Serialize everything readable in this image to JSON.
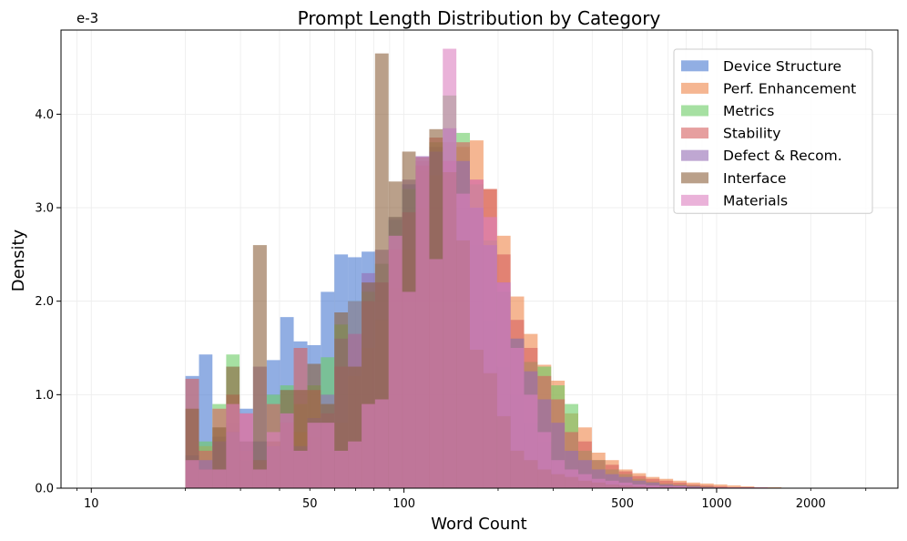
{
  "chart_data": {
    "type": "histogram",
    "title": "Prompt Length Distribution by Category",
    "xlabel": "Word Count",
    "ylabel": "Density",
    "y_multiplier_label": "e-3",
    "x_scale": "log",
    "xlim": [
      8,
      3800
    ],
    "ylim": [
      0,
      4.9
    ],
    "x_ticks": [
      {
        "value": 10,
        "label": "10"
      },
      {
        "value": 50,
        "label": "50"
      },
      {
        "value": 100,
        "label": "100"
      },
      {
        "value": 500,
        "label": "500"
      },
      {
        "value": 1000,
        "label": "1000"
      },
      {
        "value": 2000,
        "label": "2000"
      }
    ],
    "y_ticks": [
      {
        "value": 0,
        "label": "0.0"
      },
      {
        "value": 1,
        "label": "1.0"
      },
      {
        "value": 2,
        "label": "2.0"
      },
      {
        "value": 3,
        "label": "3.0"
      },
      {
        "value": 4,
        "label": "4.0"
      }
    ],
    "grid": true,
    "legend_position": "top-right",
    "bin_edges": [
      20,
      22.1,
      24.4,
      27,
      29.8,
      32.9,
      36.4,
      40.2,
      44.4,
      49.1,
      54.2,
      59.9,
      66.2,
      73.2,
      80.8,
      89.3,
      98.7,
      109,
      120.5,
      133.1,
      147.1,
      162.5,
      179.6,
      198.4,
      219.2,
      242.2,
      267.6,
      295.7,
      326.7,
      361,
      398.9,
      440.7,
      486.9,
      538,
      594.4,
      656.8,
      725.7,
      801.8,
      885.9,
      978.9,
      1081.6,
      1195,
      1320.4,
      1458.9,
      1612,
      1781.1,
      1967.9,
      2174.3,
      2402.4,
      2654.4,
      2932.9
    ],
    "series": [
      {
        "name": "Device Structure",
        "color": "#4878d0",
        "values": [
          1.2,
          1.43,
          0.55,
          0.7,
          0.85,
          0.5,
          1.37,
          1.83,
          1.57,
          1.53,
          2.1,
          2.5,
          2.47,
          2.53,
          2.2,
          2.87,
          3.25,
          3.55,
          3.65,
          3.3,
          3.0,
          2.6,
          1.8,
          1.3,
          1.0,
          0.7,
          0.5,
          0.3,
          0.2,
          0.13,
          0.1,
          0.08,
          0.06,
          0.04,
          0.03,
          0.02,
          0.01,
          0,
          0,
          0,
          0,
          0,
          0,
          0,
          0,
          0,
          0,
          0,
          0,
          0
        ]
      },
      {
        "name": "Perf. Enhancement",
        "color": "#ee854a",
        "values": [
          0.3,
          0.45,
          0.2,
          0.9,
          0.4,
          0.2,
          0.5,
          0.4,
          0.6,
          0.55,
          0.4,
          0.7,
          1.2,
          1.5,
          1.8,
          2.15,
          2.55,
          3.0,
          3.35,
          3.7,
          3.65,
          3.72,
          3.2,
          2.7,
          2.05,
          1.65,
          1.32,
          1.15,
          0.8,
          0.65,
          0.38,
          0.3,
          0.2,
          0.16,
          0.12,
          0.1,
          0.08,
          0.06,
          0.05,
          0.04,
          0.03,
          0.02,
          0.01,
          0.01,
          0,
          0,
          0,
          0,
          0,
          0
        ]
      },
      {
        "name": "Metrics",
        "color": "#6acc64",
        "values": [
          0.35,
          0.5,
          0.9,
          1.43,
          0.3,
          0.3,
          1.0,
          1.1,
          0.9,
          1.1,
          1.4,
          1.75,
          2.0,
          2.1,
          2.4,
          2.9,
          3.2,
          3.4,
          3.7,
          4.2,
          3.8,
          3.25,
          2.65,
          2.1,
          1.6,
          1.35,
          1.3,
          1.1,
          0.9,
          0.4,
          0.3,
          0.2,
          0.15,
          0.1,
          0.07,
          0.05,
          0.04,
          0.03,
          0.02,
          0.01,
          0,
          0,
          0,
          0,
          0,
          0,
          0,
          0,
          0,
          0
        ]
      },
      {
        "name": "Stability",
        "color": "#d65f5f",
        "values": [
          1.17,
          0.4,
          0.85,
          1.0,
          0.8,
          0.3,
          0.9,
          0.7,
          1.5,
          1.05,
          0.8,
          1.3,
          1.65,
          2.0,
          2.2,
          2.55,
          2.95,
          3.45,
          3.75,
          3.5,
          3.7,
          3.3,
          3.2,
          2.5,
          1.8,
          1.5,
          1.2,
          0.95,
          0.6,
          0.5,
          0.3,
          0.25,
          0.18,
          0.13,
          0.1,
          0.08,
          0.06,
          0.04,
          0.03,
          0.02,
          0.01,
          0.01,
          0,
          0,
          0,
          0,
          0,
          0,
          0,
          0
        ]
      },
      {
        "name": "Defect & Recom.",
        "color": "#956cb4",
        "values": [
          0.35,
          0.3,
          0.5,
          0.6,
          0.5,
          1.3,
          0.45,
          0.8,
          0.45,
          0.75,
          1.0,
          1.6,
          2.0,
          2.3,
          2.55,
          2.9,
          3.3,
          3.5,
          3.6,
          3.85,
          3.5,
          3.0,
          2.6,
          2.2,
          1.6,
          1.25,
          0.95,
          0.7,
          0.4,
          0.3,
          0.2,
          0.15,
          0.12,
          0.08,
          0.06,
          0.04,
          0.03,
          0.02,
          0.01,
          0,
          0,
          0,
          0,
          0,
          0,
          0,
          0,
          0,
          0,
          0
        ]
      },
      {
        "name": "Interface",
        "color": "#8c613c",
        "values": [
          0.85,
          0.2,
          0.65,
          1.3,
          0.5,
          2.6,
          0.5,
          1.05,
          1.05,
          1.33,
          0.9,
          1.88,
          1.3,
          2.2,
          4.65,
          3.28,
          3.6,
          3.54,
          3.84,
          3.38,
          2.65,
          1.48,
          1.23,
          0.77,
          0.4,
          0.3,
          0.2,
          0.15,
          0.12,
          0.08,
          0.06,
          0.04,
          0.03,
          0.02,
          0.01,
          0.01,
          0,
          0,
          0,
          0,
          0,
          0,
          0,
          0,
          0,
          0,
          0,
          0,
          0,
          0
        ]
      },
      {
        "name": "Materials",
        "color": "#dc7ec0",
        "values": [
          0.3,
          0.2,
          0.2,
          0.9,
          0.8,
          0.2,
          0.6,
          0.8,
          0.4,
          0.7,
          0.7,
          0.4,
          0.5,
          0.9,
          0.95,
          2.7,
          2.1,
          3.55,
          2.45,
          4.7,
          3.15,
          3.3,
          2.9,
          2.2,
          1.5,
          1.0,
          0.6,
          0.3,
          0.2,
          0.15,
          0.1,
          0.08,
          0.06,
          0.04,
          0.03,
          0.02,
          0.02,
          0.01,
          0.01,
          0.01,
          0.01,
          0.01,
          0.01,
          0,
          0,
          0,
          0,
          0,
          0,
          0
        ]
      }
    ]
  }
}
